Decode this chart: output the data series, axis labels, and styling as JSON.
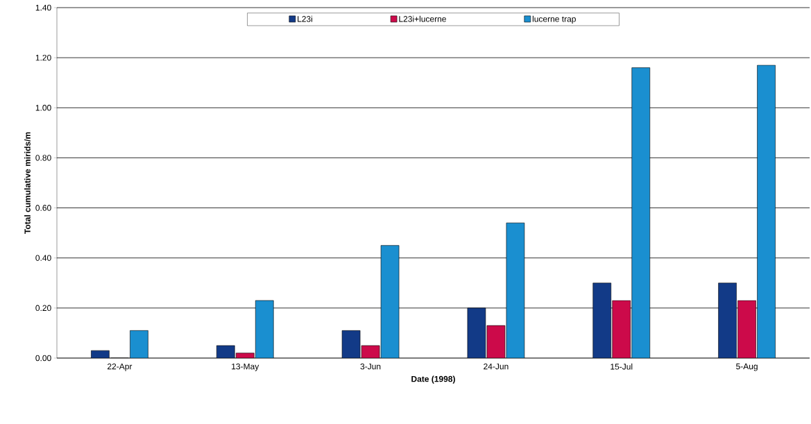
{
  "chart_data": {
    "type": "bar",
    "xlabel": "Date (1998)",
    "ylabel": "Total cumulative mirids/m",
    "categories": [
      "22-Apr",
      "13-May",
      "3-Jun",
      "24-Jun",
      "15-Jul",
      "5-Aug"
    ],
    "series": [
      {
        "name": "L23i",
        "color": "#123a87",
        "values": [
          0.03,
          0.05,
          0.11,
          0.2,
          0.3,
          0.3
        ]
      },
      {
        "name": "L23i+lucerne",
        "color": "#cc0a4a",
        "values": [
          0,
          0.02,
          0.05,
          0.13,
          0.23,
          0.23
        ]
      },
      {
        "name": "lucerne trap",
        "color": "#1a8fd0",
        "values": [
          0.11,
          0.23,
          0.45,
          0.54,
          1.16,
          1.17
        ]
      }
    ],
    "ylim": [
      0,
      1.4
    ],
    "yticks": [
      {
        "value": 0,
        "label": "0.00"
      },
      {
        "value": 0.2,
        "label": "0.20"
      },
      {
        "value": 0.4,
        "label": "0.40"
      },
      {
        "value": 0.6,
        "label": "0.60"
      },
      {
        "value": 0.8,
        "label": "0.80"
      },
      {
        "value": 1.0,
        "label": "1.00"
      },
      {
        "value": 1.2,
        "label": "1.20"
      },
      {
        "value": 1.4,
        "label": "1.40"
      }
    ],
    "grid": "y",
    "legend": "top"
  }
}
